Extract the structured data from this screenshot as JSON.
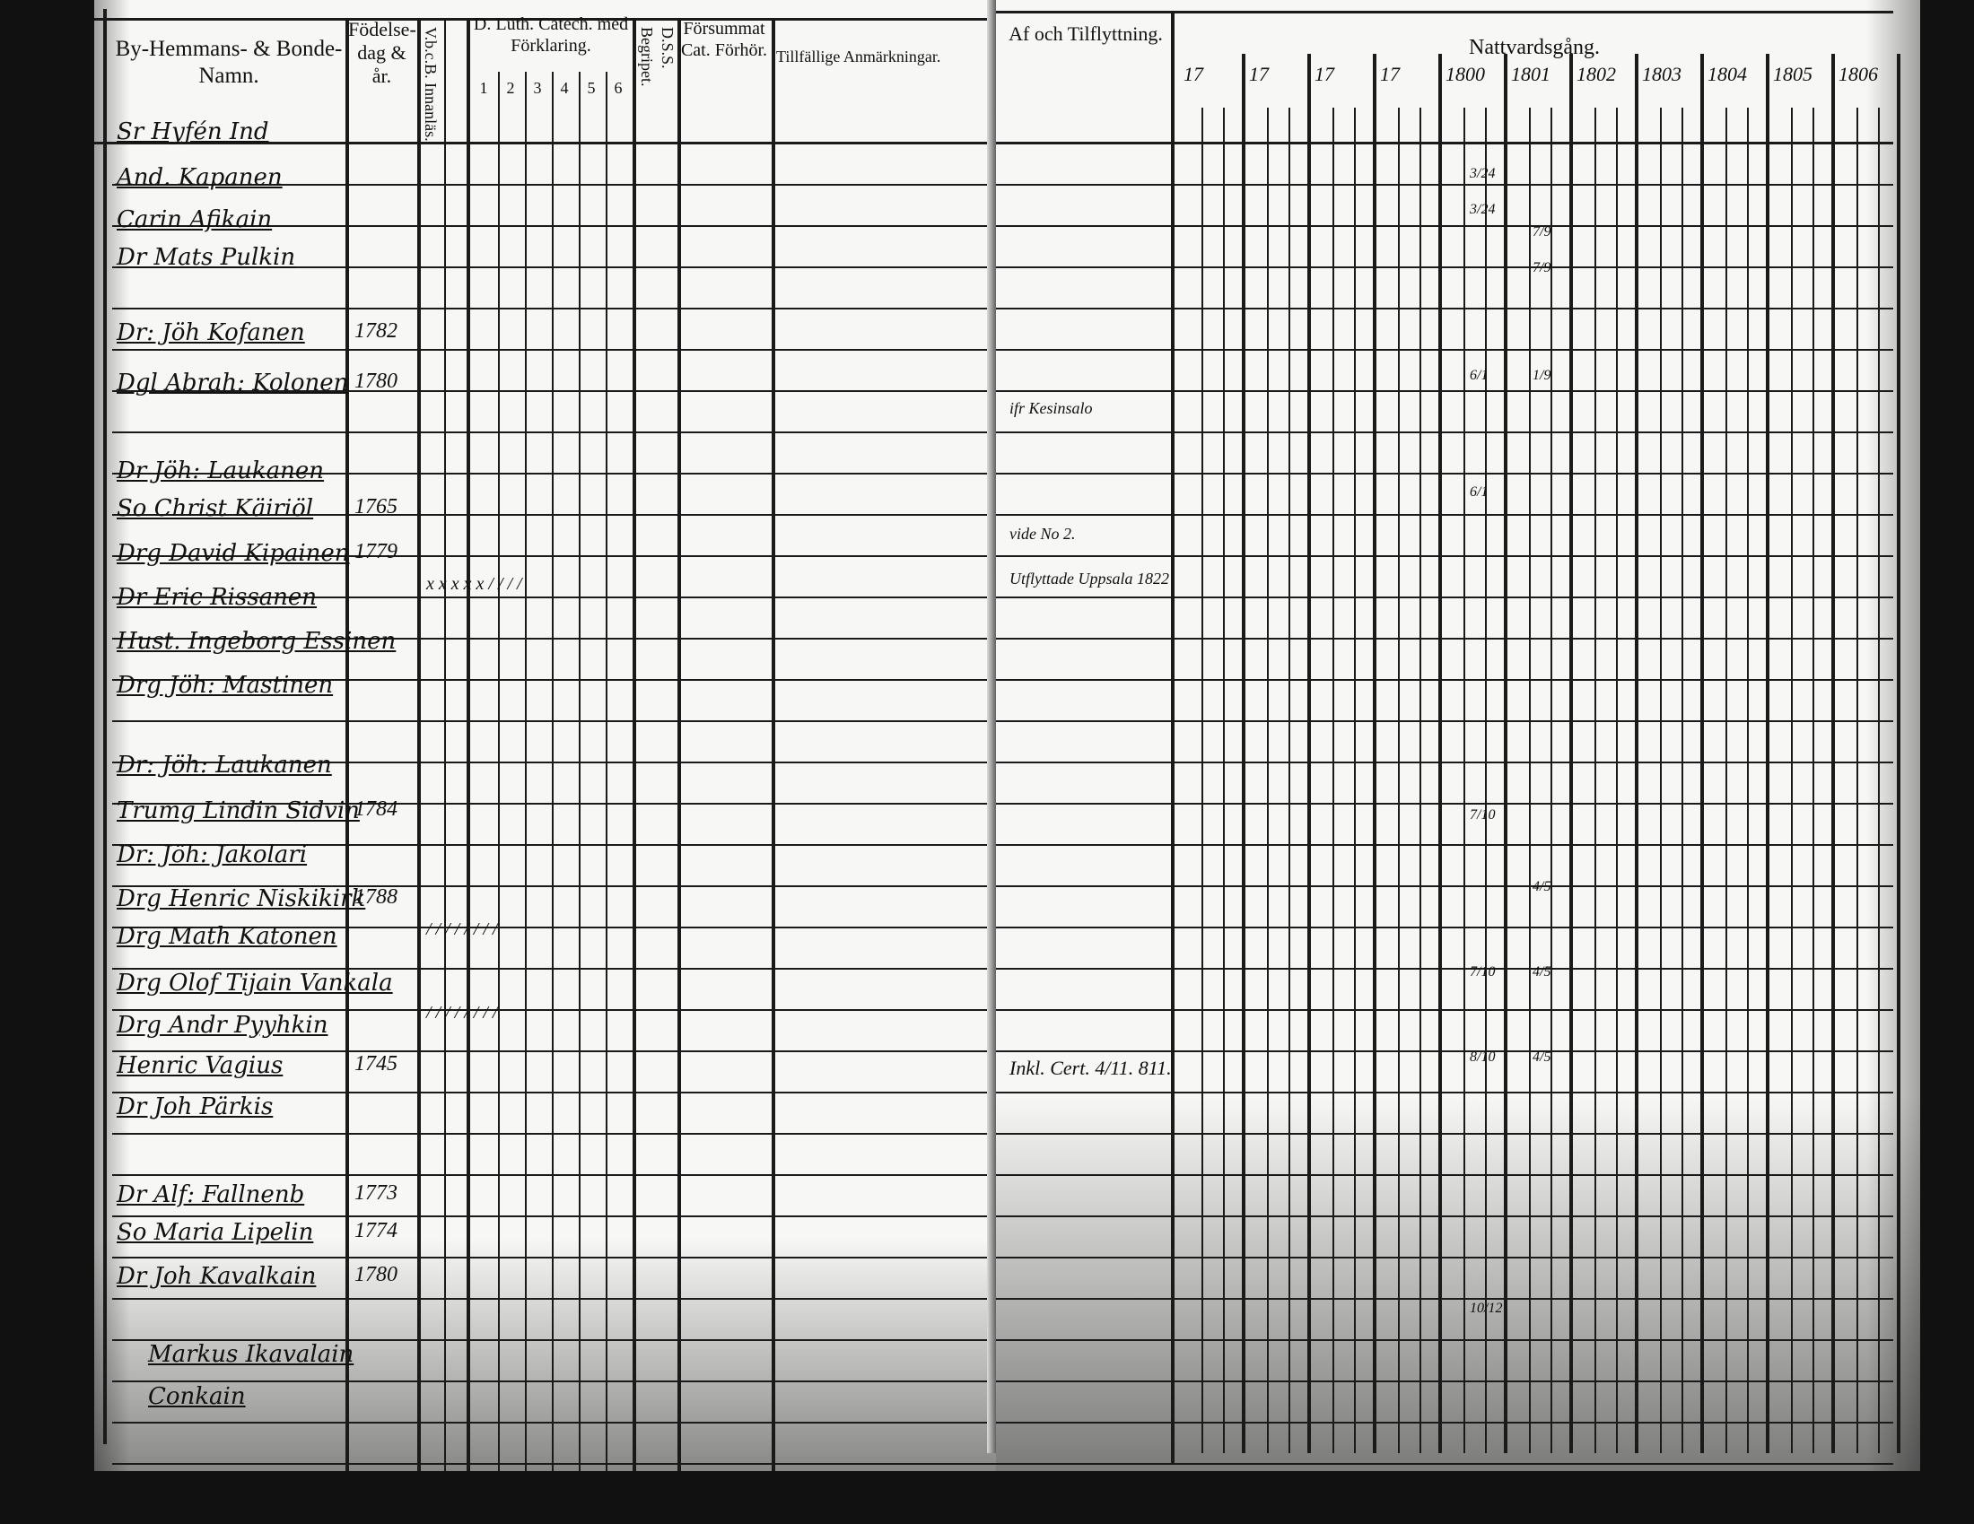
{
  "left_page": {
    "headers": {
      "names": "By-Hemmans- & Bonde-Namn.",
      "birth": "Födelse-dag & år.",
      "vbcb": "V.b.c.B. Innanläs.",
      "catech": "D. Luth. Catech. med Förklaring.",
      "catech_cols": [
        "1",
        "2",
        "3",
        "4",
        "5",
        "6"
      ],
      "begripet": "Begripet.",
      "dss": "D.S.S.",
      "forsummat": "Försummat Cat. Förhör.",
      "remarks": "Tillfällige Anmärkningar."
    },
    "entries": [
      {
        "name": "Sr Hyfén Ind",
        "year": ""
      },
      {
        "name": "And. Kapanen",
        "year": ""
      },
      {
        "name": "Carin Afikain",
        "year": ""
      },
      {
        "name": "Dr Mats Pulkin",
        "year": ""
      },
      {
        "name": "Dr: Jöh Kofanen",
        "year": "1782"
      },
      {
        "name": "Dgl Abrah: Kolonen",
        "year": "1780"
      },
      {
        "name": "Dr Jöh: Laukanen",
        "year": ""
      },
      {
        "name": "So Christ Käiriöl",
        "year": "1765"
      },
      {
        "name": "Drg David Kipainen",
        "year": "1779"
      },
      {
        "name": "Dr Eric Rissanen",
        "year": ""
      },
      {
        "name": "Hust. Ingeborg Essinen",
        "year": ""
      },
      {
        "name": "Drg Jöh: Mastinen",
        "year": ""
      },
      {
        "name": "Dr: Jöh: Laukanen",
        "year": ""
      },
      {
        "name": "Trumg Lindin Sidvin",
        "year": "1784"
      },
      {
        "name": "Dr: Jöh: Jakolari",
        "year": ""
      },
      {
        "name": "Drg Henric Niskikirk",
        "year": "1788"
      },
      {
        "name": "Drg Math Katonen",
        "year": ""
      },
      {
        "name": "Drg Olof Tijain Vankala",
        "year": ""
      },
      {
        "name": "Drg Andr Pyyhkin",
        "year": ""
      },
      {
        "name": "Henric Vagius",
        "year": "1745"
      },
      {
        "name": "Dr Joh Pärkis",
        "year": ""
      },
      {
        "name": "Dr Alf: Fallnenb",
        "year": "1773"
      },
      {
        "name": "So Maria Lipelin",
        "year": "1774"
      },
      {
        "name": "Dr Joh Kavalkain",
        "year": "1780"
      },
      {
        "name": "Markus Ikavalain",
        "year": ""
      },
      {
        "name": "Conkain",
        "year": ""
      }
    ],
    "catech_marks": [
      "x x x x x / / / /",
      "/ / / / / / / /",
      "/ / / / / / / /"
    ]
  },
  "right_page": {
    "headers": {
      "moving": "Af och Tilflyttning.",
      "communion": "Nattvardsgång.",
      "years": [
        "17",
        "17",
        "17",
        "17",
        "1800",
        "1801",
        "1802",
        "1803",
        "1804",
        "1805",
        "1806"
      ]
    },
    "moving_notes": [
      "ifr Kesinsalo",
      "vide No 2.",
      "Utflyttade Uppsala 1822",
      "Inkl. Cert. 4/11. 811."
    ],
    "communion_marks": [
      "3/24",
      "3/24",
      "7/9",
      "7/9",
      "6/1",
      "1/9",
      "6/1",
      "7/10",
      "4/5",
      "7/10",
      "4/5",
      "8/10",
      "4/5",
      "10/12"
    ]
  }
}
